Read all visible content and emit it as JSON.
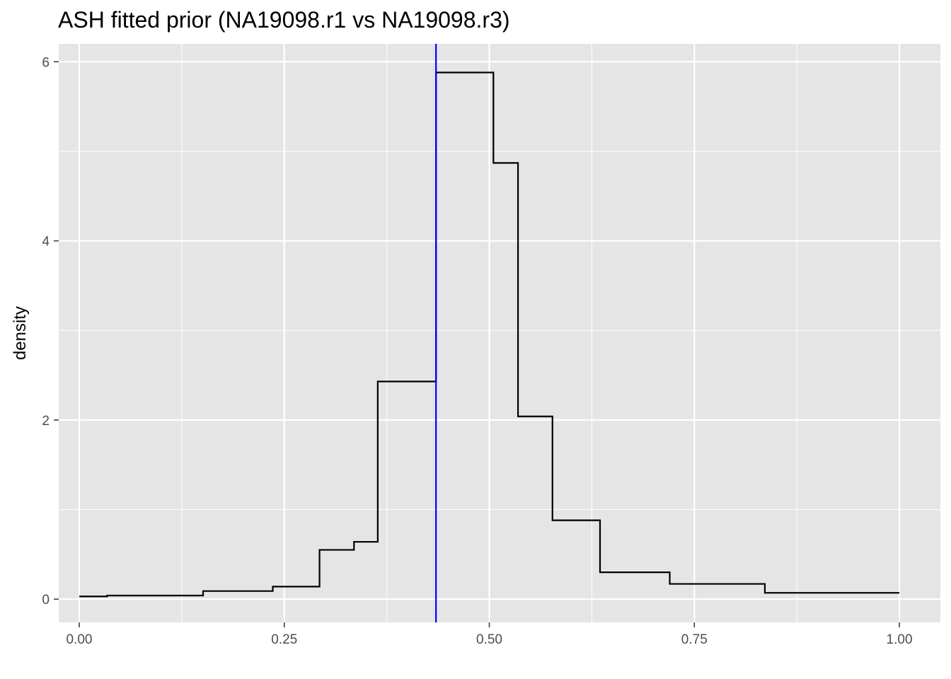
{
  "chart_data": {
    "type": "line",
    "subtype": "step",
    "title": "ASH fitted prior (NA19098.r1 vs NA19098.r3)",
    "xlabel": "",
    "ylabel": "density",
    "xlim": [
      -0.025,
      1.05
    ],
    "ylim": [
      -0.26,
      6.2
    ],
    "x_ticks": [
      0,
      0.25,
      0.5,
      0.75,
      1
    ],
    "x_tick_labels": [
      "0.00",
      "0.25",
      "0.50",
      "0.75",
      "1.00"
    ],
    "y_ticks": [
      0,
      2,
      4,
      6
    ],
    "y_tick_labels": [
      "0",
      "2",
      "4",
      "6"
    ],
    "grid": true,
    "panel_background": "#e5e5e5",
    "grid_color": "#ffffff",
    "series": [
      {
        "color": "#000000",
        "steps": [
          {
            "x0": 0.0,
            "x1": 0.034,
            "y": 0.03
          },
          {
            "x0": 0.034,
            "x1": 0.151,
            "y": 0.04
          },
          {
            "x0": 0.151,
            "x1": 0.236,
            "y": 0.09
          },
          {
            "x0": 0.236,
            "x1": 0.293,
            "y": 0.14
          },
          {
            "x0": 0.293,
            "x1": 0.335,
            "y": 0.55
          },
          {
            "x0": 0.335,
            "x1": 0.364,
            "y": 0.64
          },
          {
            "x0": 0.364,
            "x1": 0.435,
            "y": 2.43
          },
          {
            "x0": 0.435,
            "x1": 0.505,
            "y": 5.88
          },
          {
            "x0": 0.505,
            "x1": 0.535,
            "y": 4.87
          },
          {
            "x0": 0.535,
            "x1": 0.577,
            "y": 2.04
          },
          {
            "x0": 0.577,
            "x1": 0.635,
            "y": 0.88
          },
          {
            "x0": 0.635,
            "x1": 0.72,
            "y": 0.3
          },
          {
            "x0": 0.72,
            "x1": 0.836,
            "y": 0.17
          },
          {
            "x0": 0.836,
            "x1": 1.0,
            "y": 0.07
          }
        ]
      }
    ],
    "vline": {
      "x": 0.435,
      "color": "#0000ff"
    }
  }
}
